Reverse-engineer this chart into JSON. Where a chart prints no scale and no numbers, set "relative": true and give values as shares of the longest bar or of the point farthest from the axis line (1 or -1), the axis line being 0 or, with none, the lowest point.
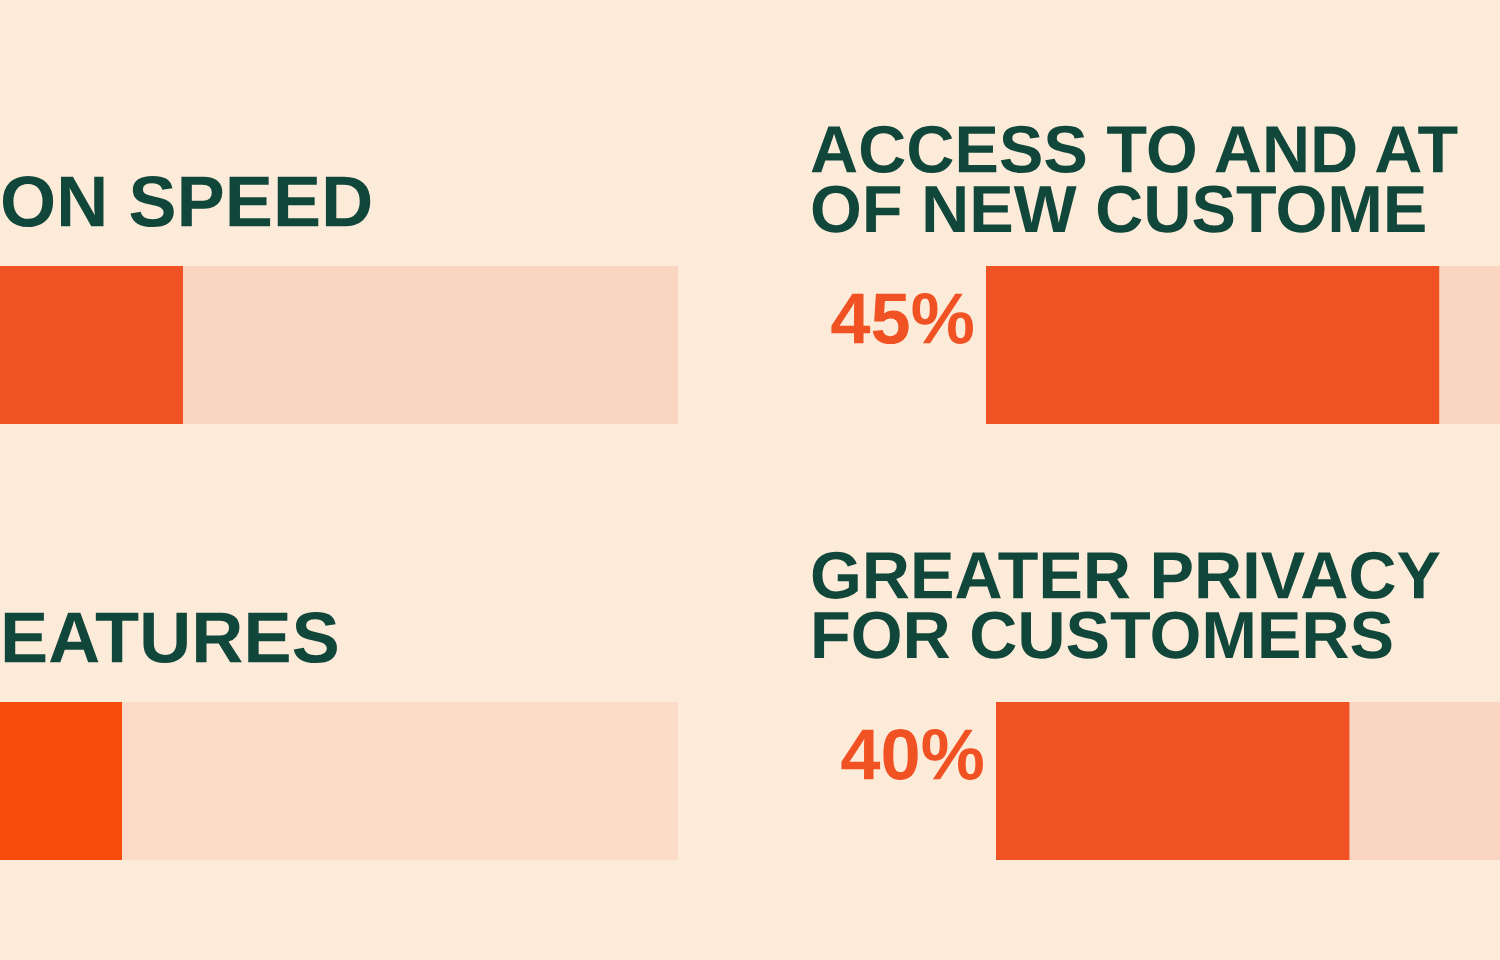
{
  "chart_data": [
    {
      "type": "bar",
      "orientation": "horizontal",
      "title": "ON SPEED",
      "categories": [
        null
      ],
      "relative": true,
      "stacked": true,
      "series": [
        {
          "color": "#f15224",
          "values": [
            0.27
          ]
        },
        {
          "color": "#fad5c1",
          "values": [
            0.73
          ]
        }
      ]
    },
    {
      "type": "bar",
      "orientation": "horizontal",
      "title": "ACCESS TO AND AT\nOF NEW CUSTOME",
      "categories": [
        null
      ],
      "stacked": true,
      "xlim": [
        0,
        51
      ],
      "tick_labels": false,
      "series": [
        {
          "color": "#f15224",
          "values": [
            45
          ],
          "value_labels": [
            "45%"
          ]
        },
        {
          "color": "#fad5c1",
          "values": [
            6
          ]
        }
      ]
    },
    {
      "type": "bar",
      "orientation": "horizontal",
      "title": "EATURES",
      "categories": [
        null
      ],
      "relative": true,
      "stacked": true,
      "series": [
        {
          "color": "#f84c0a",
          "values": [
            0.18
          ]
        },
        {
          "color": "#fcdcc8",
          "values": [
            0.82
          ]
        }
      ]
    },
    {
      "type": "bar",
      "orientation": "horizontal",
      "title": "GREATER PRIVACY\nFOR CUSTOMERS",
      "categories": [
        null
      ],
      "stacked": true,
      "xlim": [
        0,
        57
      ],
      "tick_labels": false,
      "series": [
        {
          "color": "#f15224",
          "values": [
            40
          ],
          "value_labels": [
            "40%"
          ]
        },
        {
          "color": "#fad5c1",
          "values": [
            17
          ]
        }
      ]
    }
  ]
}
